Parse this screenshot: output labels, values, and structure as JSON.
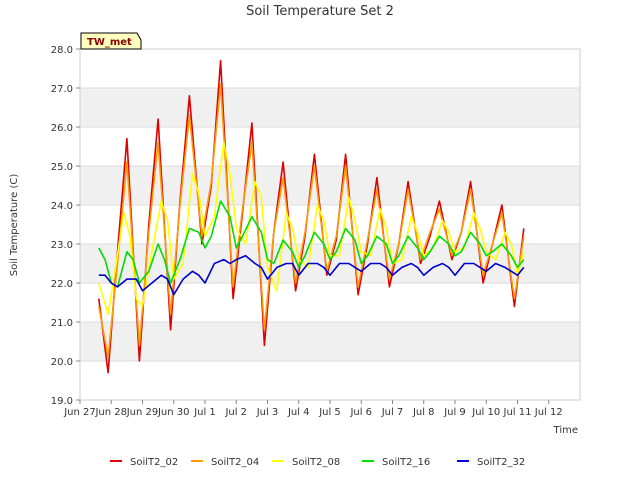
{
  "chart_data": {
    "type": "line",
    "title": "Soil Temperature Set 2",
    "xlabel": "Time",
    "ylabel": "Soil Temperature (C)",
    "badge": "TW_met",
    "xlim": [
      0,
      16
    ],
    "ylim": [
      19.0,
      28.0
    ],
    "x_ticks": [
      {
        "x": 0,
        "label": "Jun 27"
      },
      {
        "x": 1,
        "label": "Jun 28"
      },
      {
        "x": 2,
        "label": "Jun 29"
      },
      {
        "x": 3,
        "label": "Jun 30"
      },
      {
        "x": 4,
        "label": "Jul 1"
      },
      {
        "x": 5,
        "label": "Jul 2"
      },
      {
        "x": 6,
        "label": "Jul 3"
      },
      {
        "x": 7,
        "label": "Jul 4"
      },
      {
        "x": 8,
        "label": "Jul 5"
      },
      {
        "x": 9,
        "label": "Jul 6"
      },
      {
        "x": 10,
        "label": "Jul 7"
      },
      {
        "x": 11,
        "label": "Jul 8"
      },
      {
        "x": 12,
        "label": "Jul 9"
      },
      {
        "x": 13,
        "label": "Jul 10"
      },
      {
        "x": 14,
        "label": "Jul 11"
      },
      {
        "x": 15,
        "label": "Jul 12"
      }
    ],
    "y_ticks": [
      {
        "y": 19,
        "label": "19.0"
      },
      {
        "y": 20,
        "label": "20.0"
      },
      {
        "y": 21,
        "label": "21.0"
      },
      {
        "y": 22,
        "label": "22.0"
      },
      {
        "y": 23,
        "label": "23.0"
      },
      {
        "y": 24,
        "label": "24.0"
      },
      {
        "y": 25,
        "label": "25.0"
      },
      {
        "y": 26,
        "label": "26.0"
      },
      {
        "y": 27,
        "label": "27.0"
      },
      {
        "y": 28,
        "label": "28.0"
      }
    ],
    "grid": true,
    "legend_position": "bottom",
    "series": [
      {
        "name": "SoilT2_02",
        "color": "#dd0000",
        "x": [
          0.6,
          0.9,
          1.2,
          1.5,
          1.9,
          2.2,
          2.5,
          2.9,
          3.2,
          3.5,
          3.9,
          4.2,
          4.5,
          4.9,
          5.2,
          5.5,
          5.9,
          6.2,
          6.5,
          6.9,
          7.2,
          7.5,
          7.9,
          8.2,
          8.5,
          8.9,
          9.2,
          9.5,
          9.9,
          10.2,
          10.5,
          10.9,
          11.2,
          11.5,
          11.9,
          12.2,
          12.5,
          12.9,
          13.2,
          13.5,
          13.9,
          14.2
        ],
        "y": [
          21.6,
          19.7,
          22.8,
          25.7,
          20.0,
          23.5,
          26.2,
          20.8,
          24.1,
          26.8,
          23.0,
          24.5,
          27.7,
          21.6,
          23.8,
          26.1,
          20.4,
          23.3,
          25.1,
          21.8,
          23.2,
          25.3,
          22.2,
          23.1,
          25.3,
          21.7,
          23.0,
          24.7,
          21.9,
          23.0,
          24.6,
          22.5,
          23.2,
          24.1,
          22.6,
          23.3,
          24.6,
          22.0,
          23.0,
          24.0,
          21.4,
          23.4
        ]
      },
      {
        "name": "SoilT2_04",
        "color": "#ff9900",
        "x": [
          0.6,
          0.9,
          1.2,
          1.5,
          1.9,
          2.2,
          2.5,
          2.9,
          3.2,
          3.5,
          3.9,
          4.2,
          4.5,
          4.9,
          5.2,
          5.5,
          5.9,
          6.2,
          6.5,
          6.9,
          7.2,
          7.5,
          7.9,
          8.2,
          8.5,
          8.9,
          9.2,
          9.5,
          9.9,
          10.2,
          10.5,
          10.9,
          11.2,
          11.5,
          11.9,
          12.2,
          12.5,
          12.9,
          13.2,
          13.5,
          13.9,
          14.2
        ],
        "y": [
          21.4,
          20.1,
          22.5,
          25.1,
          20.4,
          23.3,
          25.6,
          21.2,
          24.0,
          26.3,
          23.2,
          24.6,
          27.1,
          21.9,
          23.9,
          25.6,
          20.8,
          23.3,
          24.7,
          22.0,
          23.3,
          25.0,
          22.3,
          23.2,
          25.0,
          21.9,
          23.1,
          24.4,
          22.1,
          23.0,
          24.4,
          22.6,
          23.3,
          23.9,
          22.7,
          23.3,
          24.4,
          22.2,
          23.0,
          23.8,
          21.6,
          23.2
        ]
      },
      {
        "name": "SoilT2_08",
        "color": "#ffff00",
        "x": [
          0.6,
          0.9,
          1.1,
          1.4,
          1.6,
          1.8,
          2.0,
          2.3,
          2.6,
          2.8,
          3.0,
          3.3,
          3.6,
          3.8,
          4.0,
          4.3,
          4.6,
          4.8,
          5.0,
          5.3,
          5.6,
          5.8,
          6.0,
          6.3,
          6.6,
          6.8,
          7.0,
          7.3,
          7.6,
          7.8,
          8.0,
          8.3,
          8.6,
          8.8,
          9.0,
          9.3,
          9.6,
          9.8,
          10.0,
          10.3,
          10.6,
          10.8,
          11.0,
          11.3,
          11.6,
          11.8,
          12.0,
          12.3,
          12.6,
          12.8,
          13.0,
          13.3,
          13.6,
          13.8,
          14.0,
          14.2
        ],
        "y": [
          22.0,
          21.2,
          22.2,
          23.8,
          23.2,
          21.6,
          21.4,
          22.8,
          24.1,
          23.6,
          22.1,
          22.5,
          24.8,
          24.3,
          23.2,
          23.7,
          25.6,
          24.8,
          23.4,
          23.0,
          24.6,
          24.2,
          22.4,
          21.8,
          23.8,
          23.4,
          22.6,
          22.4,
          24.0,
          23.6,
          22.7,
          22.7,
          24.2,
          23.6,
          22.8,
          22.7,
          23.9,
          23.4,
          22.5,
          22.6,
          23.7,
          23.3,
          22.7,
          22.9,
          23.6,
          23.3,
          22.8,
          22.9,
          23.8,
          23.4,
          22.8,
          22.6,
          23.3,
          23.0,
          22.2,
          22.8
        ]
      },
      {
        "name": "SoilT2_16",
        "color": "#00dd00",
        "x": [
          0.6,
          0.8,
          1.0,
          1.2,
          1.5,
          1.7,
          1.9,
          2.2,
          2.5,
          2.7,
          2.9,
          3.2,
          3.5,
          3.8,
          4.0,
          4.2,
          4.5,
          4.8,
          5.0,
          5.2,
          5.5,
          5.8,
          6.0,
          6.2,
          6.5,
          6.8,
          7.0,
          7.2,
          7.5,
          7.8,
          8.0,
          8.2,
          8.5,
          8.8,
          9.0,
          9.2,
          9.5,
          9.8,
          10.0,
          10.2,
          10.5,
          10.8,
          11.0,
          11.2,
          11.5,
          11.8,
          12.0,
          12.2,
          12.5,
          12.8,
          13.0,
          13.2,
          13.5,
          13.8,
          14.0,
          14.2
        ],
        "y": [
          22.9,
          22.6,
          22.0,
          21.9,
          22.8,
          22.6,
          22.0,
          22.3,
          23.0,
          22.6,
          22.0,
          22.6,
          23.4,
          23.3,
          22.9,
          23.2,
          24.1,
          23.7,
          22.9,
          23.2,
          23.7,
          23.3,
          22.6,
          22.5,
          23.1,
          22.8,
          22.4,
          22.7,
          23.3,
          23.0,
          22.6,
          22.8,
          23.4,
          23.1,
          22.5,
          22.7,
          23.2,
          23.0,
          22.5,
          22.7,
          23.2,
          22.9,
          22.6,
          22.8,
          23.2,
          23.0,
          22.7,
          22.8,
          23.3,
          23.0,
          22.7,
          22.8,
          23.0,
          22.7,
          22.4,
          22.6
        ]
      },
      {
        "name": "SoilT2_32",
        "color": "#0000cc",
        "x": [
          0.6,
          0.8,
          1.0,
          1.2,
          1.5,
          1.8,
          2.0,
          2.3,
          2.6,
          2.8,
          3.0,
          3.3,
          3.6,
          3.8,
          4.0,
          4.3,
          4.6,
          4.8,
          5.0,
          5.3,
          5.6,
          5.8,
          6.0,
          6.3,
          6.6,
          6.8,
          7.0,
          7.3,
          7.6,
          7.8,
          8.0,
          8.3,
          8.6,
          8.8,
          9.0,
          9.3,
          9.6,
          9.8,
          10.0,
          10.3,
          10.6,
          10.8,
          11.0,
          11.3,
          11.6,
          11.8,
          12.0,
          12.3,
          12.6,
          12.8,
          13.0,
          13.3,
          13.6,
          13.8,
          14.0,
          14.2
        ],
        "y": [
          22.2,
          22.2,
          22.0,
          21.9,
          22.1,
          22.1,
          21.8,
          22.0,
          22.2,
          22.1,
          21.7,
          22.1,
          22.3,
          22.2,
          22.0,
          22.5,
          22.6,
          22.5,
          22.6,
          22.7,
          22.5,
          22.4,
          22.1,
          22.4,
          22.5,
          22.5,
          22.2,
          22.5,
          22.5,
          22.4,
          22.2,
          22.5,
          22.5,
          22.4,
          22.3,
          22.5,
          22.5,
          22.4,
          22.2,
          22.4,
          22.5,
          22.4,
          22.2,
          22.4,
          22.5,
          22.4,
          22.2,
          22.5,
          22.5,
          22.4,
          22.3,
          22.5,
          22.4,
          22.3,
          22.2,
          22.4
        ]
      }
    ]
  }
}
